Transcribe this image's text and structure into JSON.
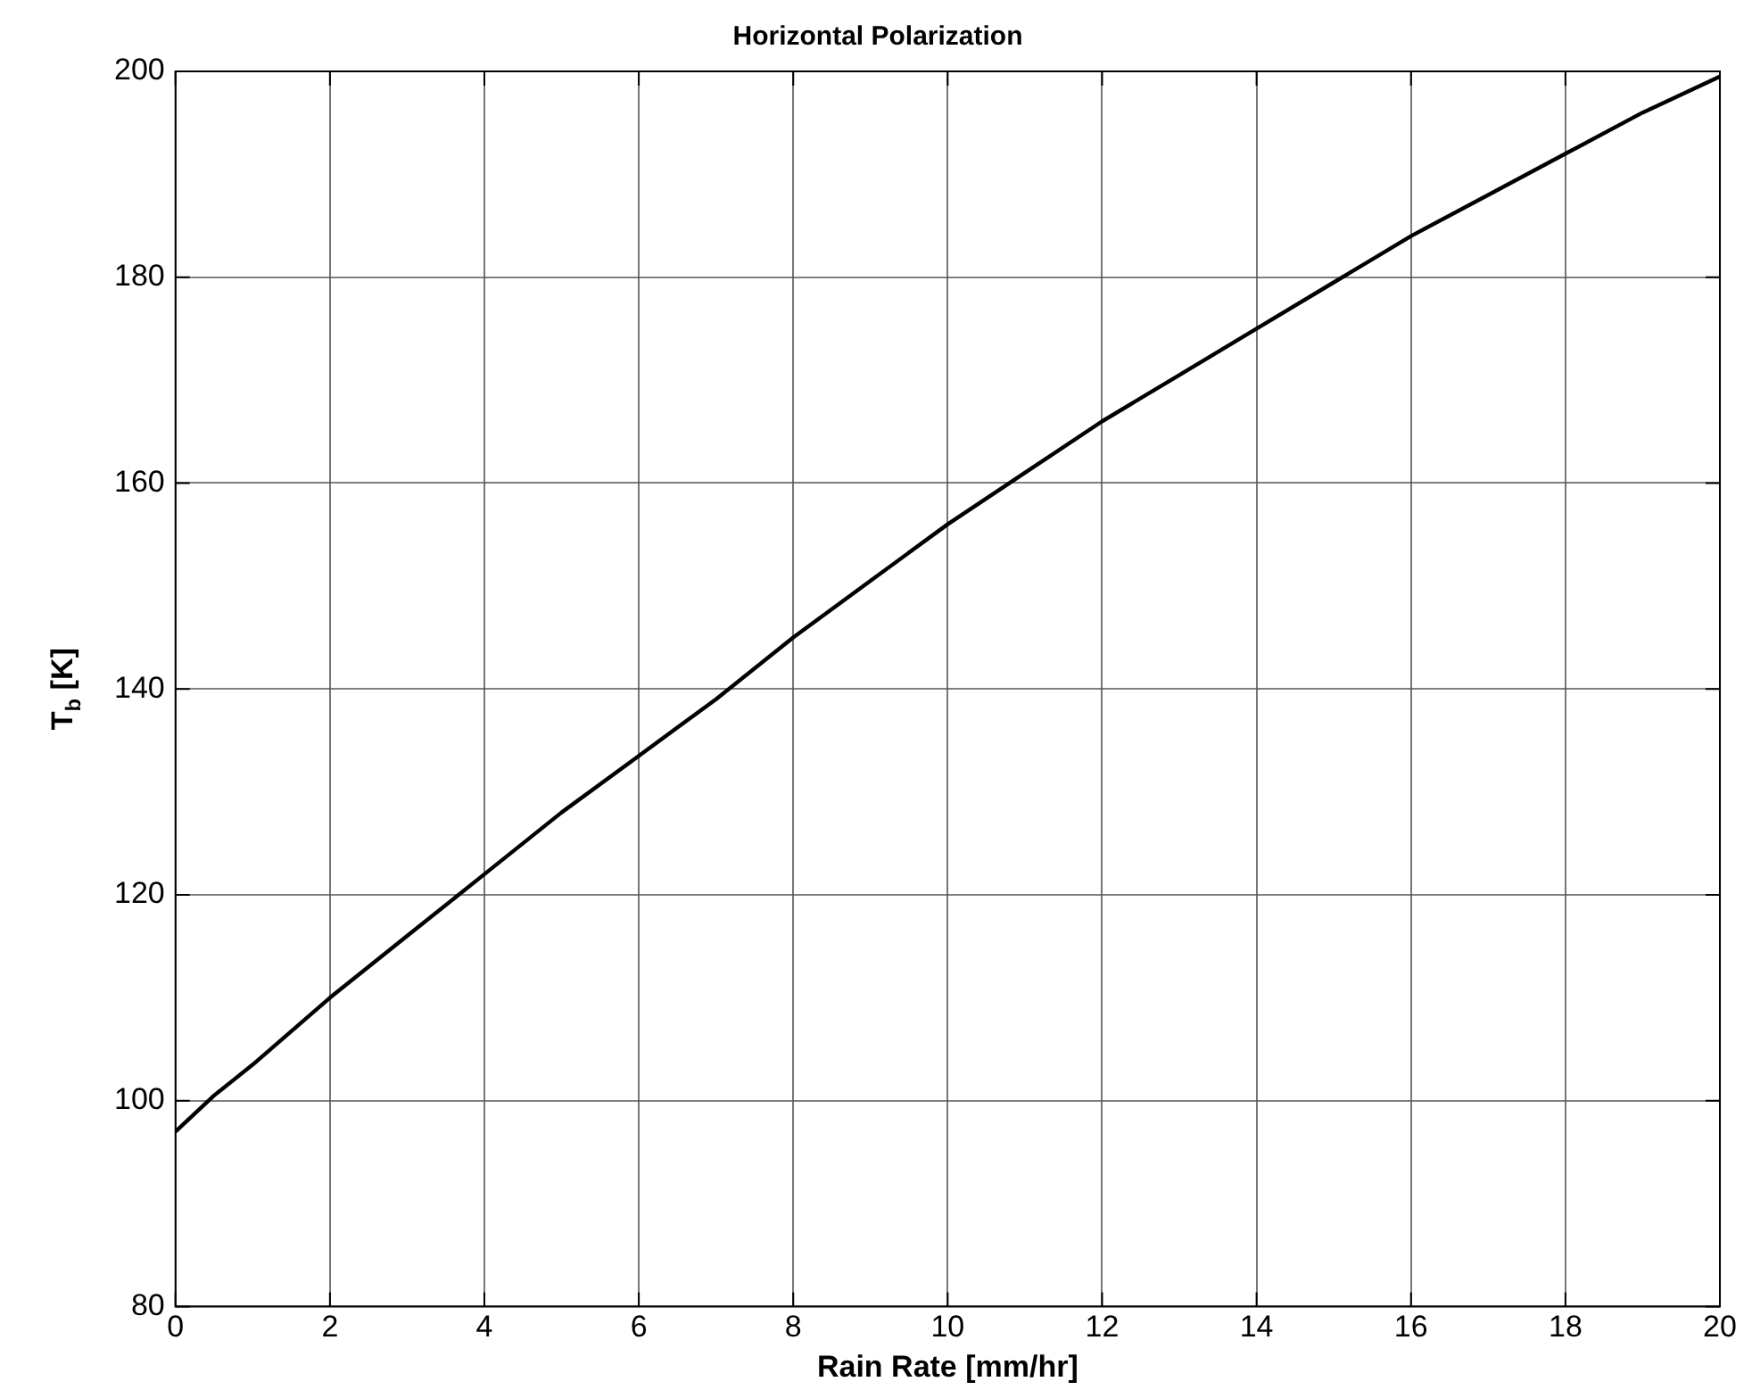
{
  "chart_data": {
    "type": "line",
    "title": "Horizontal Polarization",
    "xlabel": "Rain Rate [mm/hr]",
    "ylabel": "T$_{b}$ [K]",
    "x": [
      0,
      0.5,
      1,
      2,
      3,
      4,
      5,
      6,
      7,
      8,
      9,
      10,
      11,
      12,
      13,
      14,
      15,
      16,
      17,
      18,
      19,
      20
    ],
    "series": [
      {
        "color": "#000000",
        "values": [
          97,
          100.5,
          103.5,
          110,
          116,
          122,
          128,
          133.5,
          139,
          145,
          150.5,
          156,
          161,
          166,
          170.5,
          175,
          179.5,
          184,
          188,
          192,
          196,
          199.5
        ]
      }
    ],
    "xlim": [
      0,
      20
    ],
    "xticks": [
      0,
      2,
      4,
      6,
      8,
      10,
      12,
      14,
      16,
      18,
      20
    ],
    "ylim": [
      80,
      200
    ],
    "yticks": [
      80,
      100,
      120,
      140,
      160,
      180,
      200
    ],
    "grid": true,
    "legend": false,
    "marker": "none",
    "line_style": "solid"
  }
}
